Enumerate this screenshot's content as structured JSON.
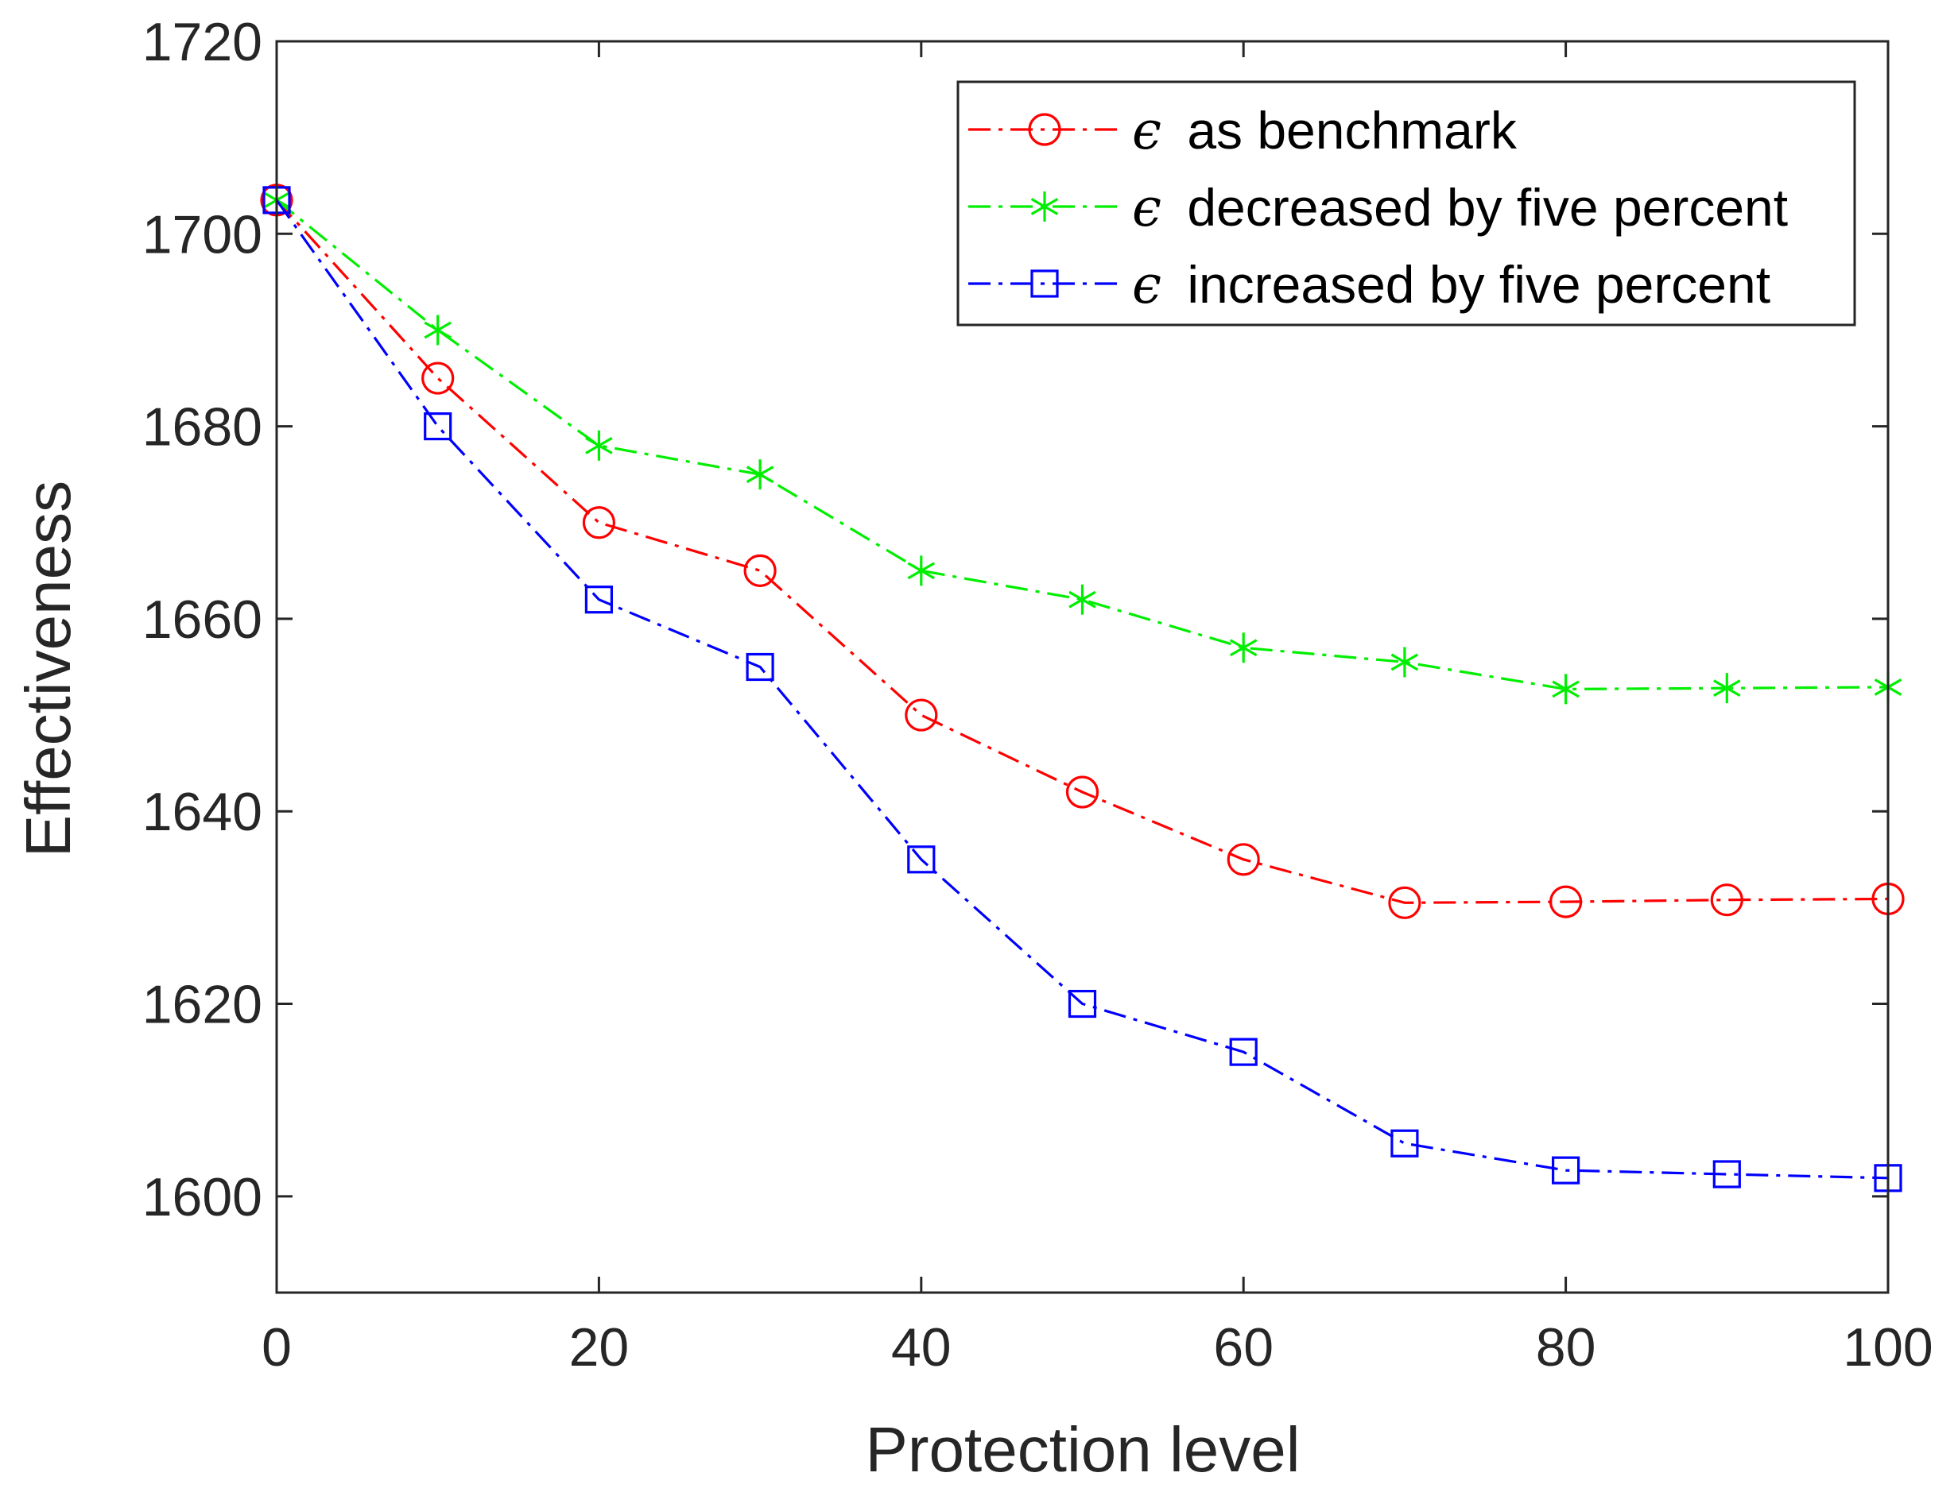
{
  "chart_data": {
    "type": "line",
    "title": "",
    "xlabel": "Protection level",
    "ylabel": "Effectiveness",
    "xlim": [
      0,
      100
    ],
    "ylim": [
      1590,
      1720
    ],
    "xticks": [
      0,
      20,
      40,
      60,
      80,
      100
    ],
    "yticks": [
      1600,
      1620,
      1640,
      1660,
      1680,
      1700,
      1720
    ],
    "x": [
      0,
      10,
      20,
      30,
      40,
      50,
      60,
      70,
      80,
      90,
      100
    ],
    "legend_position": "top-right",
    "grid": false,
    "series": [
      {
        "name": "ϵ as benchmark",
        "symbol": "ϵ",
        "label": "as benchmark",
        "color": "#ff0000",
        "marker": "circle",
        "line_style": "dash-dot",
        "values": [
          1703.5,
          1685,
          1670,
          1665,
          1650,
          1642,
          1635,
          1630.5,
          1630.6,
          1630.8,
          1630.9
        ]
      },
      {
        "name": "ϵ decreased by five percent",
        "symbol": "ϵ",
        "label": "decreased by five percent",
        "color": "#00ee00",
        "marker": "asterisk",
        "line_style": "dash-dot",
        "values": [
          1703.5,
          1690,
          1678,
          1675,
          1665,
          1662,
          1657,
          1655.5,
          1652.7,
          1652.8,
          1652.9
        ]
      },
      {
        "name": "ϵ increased by five percent",
        "symbol": "ϵ",
        "label": "increased by five percent",
        "color": "#0000ff",
        "marker": "square",
        "line_style": "dash-dot",
        "values": [
          1703.5,
          1680,
          1662,
          1655,
          1635,
          1620,
          1615,
          1605.5,
          1602.7,
          1602.3,
          1601.9
        ]
      }
    ]
  }
}
